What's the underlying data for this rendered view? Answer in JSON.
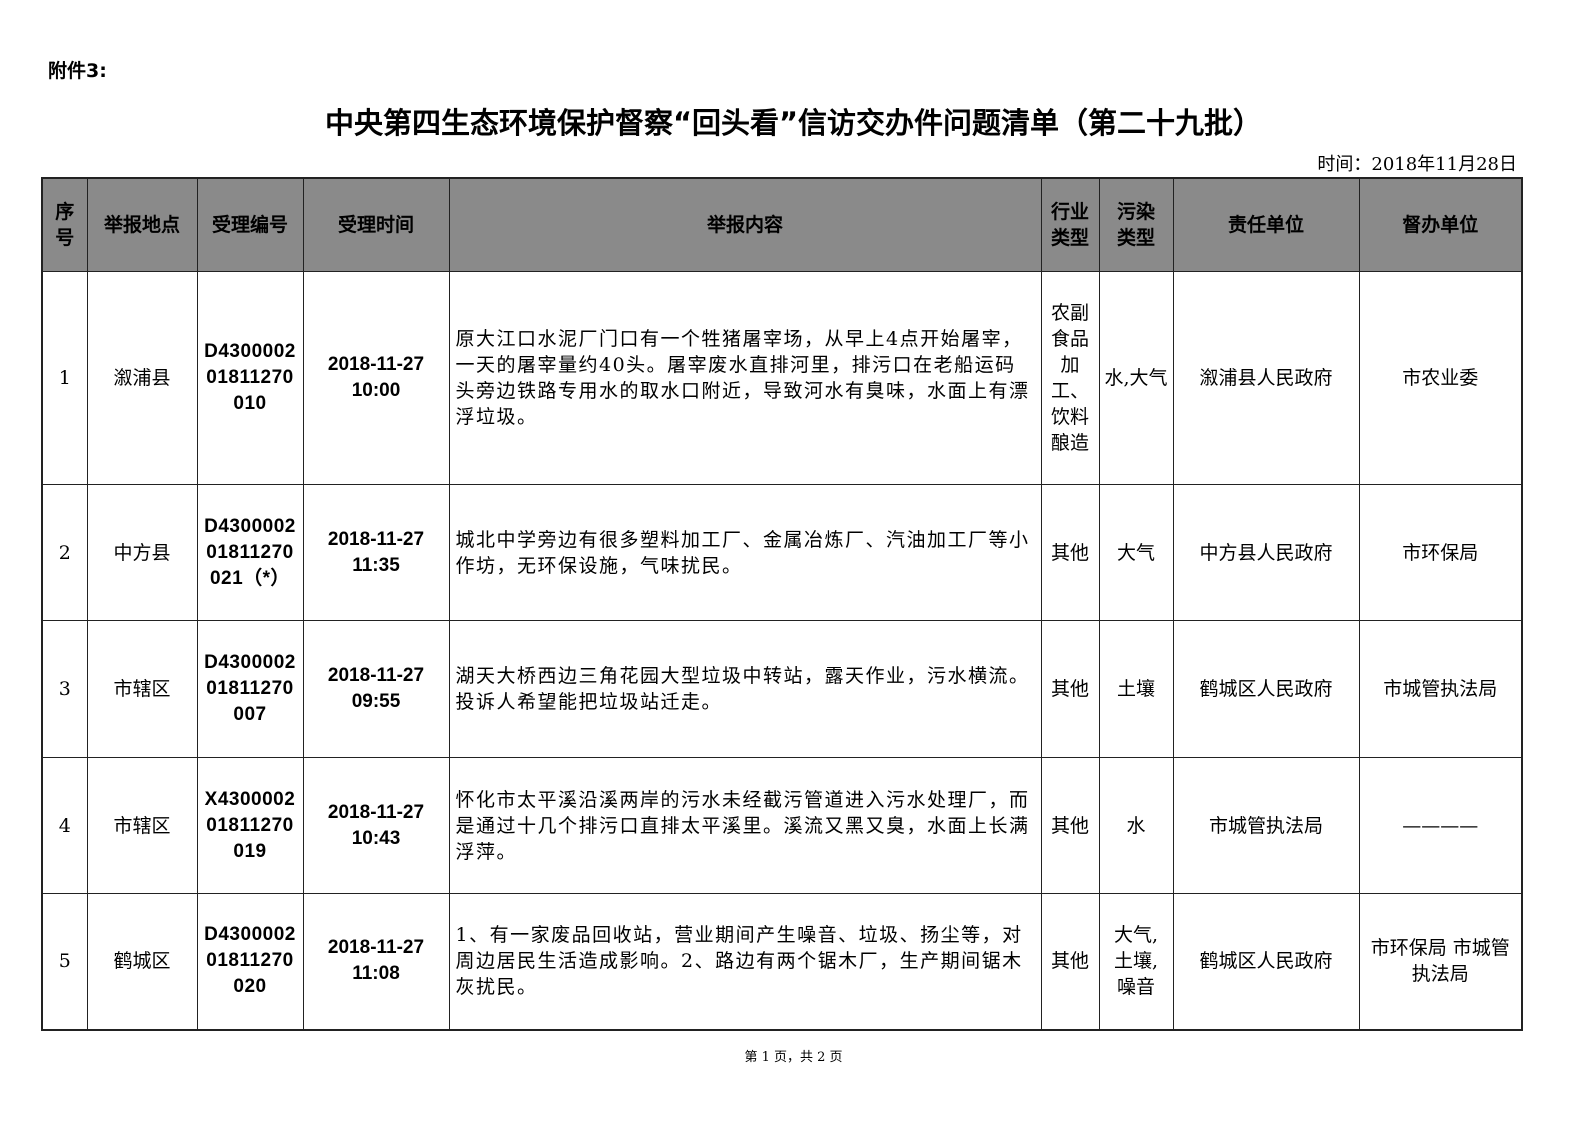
{
  "attachment": "附件3:",
  "title": "中央第四生态环境保护督察“回头看”信访交办件问题清单（第二十九批）",
  "date": "时间：2018年11月28日",
  "table": {
    "headers": [
      "序号",
      "举报地点",
      "受理编号",
      "受理时间",
      "举报内容",
      "行业类型",
      "污染类型",
      "责任单位",
      "督办单位"
    ],
    "rows": [
      {
        "no": "1",
        "location": "溆浦县",
        "id": "D430000201811270010",
        "time": "2018-11-27 10:00",
        "content": "原大江口水泥厂门口有一个牲猪屠宰场，从早上4点开始屠宰，一天的屠宰量约40头。屠宰废水直排河里，排污口在老船运码头旁边铁路专用水的取水口附近，导致河水有臭味，水面上有漂浮垃圾。",
        "industry": "农副食品加工、饮料酿造",
        "pollution": "水,大气",
        "responsible": "溆浦县人民政府",
        "supervisor": "市农业委"
      },
      {
        "no": "2",
        "location": "中方县",
        "id": "D430000201811270021（*）",
        "time": "2018-11-27 11:35",
        "content": "城北中学旁边有很多塑料加工厂、金属冶炼厂、汽油加工厂等小作坊，无环保设施，气味扰民。",
        "industry": "其他",
        "pollution": "大气",
        "responsible": "中方县人民政府",
        "supervisor": "市环保局"
      },
      {
        "no": "3",
        "location": "市辖区",
        "id": "D430000201811270007",
        "time": "2018-11-27 09:55",
        "content": "湖天大桥西边三角花园大型垃圾中转站，露天作业，污水横流。投诉人希望能把垃圾站迁走。",
        "industry": "其他",
        "pollution": "土壤",
        "responsible": "鹤城区人民政府",
        "supervisor": "市城管执法局"
      },
      {
        "no": "4",
        "location": "市辖区",
        "id": "X430000201811270019",
        "time": "2018-11-27 10:43",
        "content": "怀化市太平溪沿溪两岸的污水未经截污管道进入污水处理厂，而是通过十几个排污口直排太平溪里。溪流又黑又臭，水面上长满浮萍。",
        "industry": "其他",
        "pollution": "水",
        "responsible": "市城管执法局",
        "supervisor": "————"
      },
      {
        "no": "5",
        "location": "鹤城区",
        "id": "D430000201811270020",
        "time": "2018-11-27 11:08",
        "content": "1、有一家废品回收站，营业期间产生噪音、垃圾、扬尘等，对周边居民生活造成影响。2、路边有两个锯木厂，生产期间锯木灰扰民。",
        "industry": "其他",
        "pollution": "大气,土壤,噪音",
        "responsible": "鹤城区人民政府",
        "supervisor": "市环保局 市城管执法局"
      }
    ]
  },
  "footer": "第 1 页，共 2 页",
  "colors": {
    "header_bg": "#8a8a8a",
    "border": "#222222"
  }
}
